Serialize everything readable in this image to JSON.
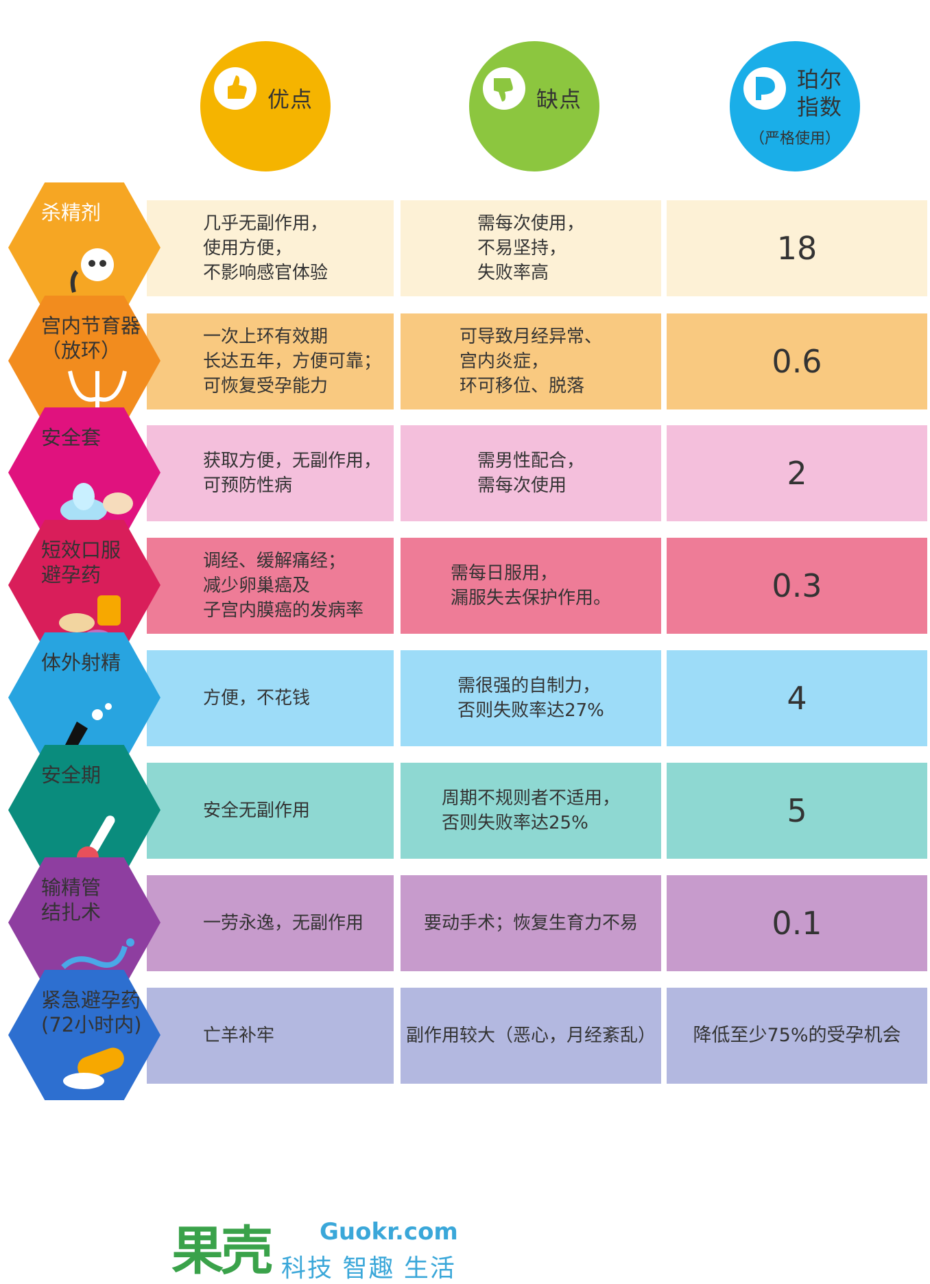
{
  "header": {
    "pros": {
      "label": "优点",
      "color": "#f5b400"
    },
    "cons": {
      "label": "缺点",
      "color": "#8cc63f"
    },
    "pearl": {
      "label": "珀尔指数",
      "sub": "（严格使用）",
      "color": "#1aaee8"
    }
  },
  "rows": [
    {
      "name": "杀精剂",
      "pros": "几乎无副作用，\n使用方便，\n不影响感官体验",
      "cons": "需每次使用，\n不易坚持，\n失败率高",
      "index": "18",
      "hex_color": "#f6a623",
      "cell_color": "#fdf1d6"
    },
    {
      "name": "宫内节育器\n（放环）",
      "pros": "一次上环有效期\n长达五年，方便可靠；\n可恢复受孕能力",
      "cons": "可导致月经异常、\n宫内炎症，\n环可移位、脱落",
      "index": "0.6",
      "hex_color": "#f28c1e",
      "cell_color": "#f9c980"
    },
    {
      "name": "安全套",
      "pros": "获取方便，无副作用，\n可预防性病",
      "cons": "需男性配合，\n需每次使用",
      "index": "2",
      "hex_color": "#e0127e",
      "cell_color": "#f4bfdc"
    },
    {
      "name": "短效口服\n避孕药",
      "pros": "调经、缓解痛经；\n减少卵巢癌及\n子宫内膜癌的发病率",
      "cons": "需每日服用，\n漏服失去保护作用。",
      "index": "0.3",
      "hex_color": "#d91e5a",
      "cell_color": "#ee7c97"
    },
    {
      "name": "体外射精",
      "pros": "方便，不花钱",
      "cons": "需很强的自制力，\n否则失败率达27%",
      "index": "4",
      "hex_color": "#28a4e0",
      "cell_color": "#9ddcf8"
    },
    {
      "name": "安全期",
      "pros": "安全无副作用",
      "cons": "周期不规则者不适用，\n否则失败率达25%",
      "index": "5",
      "hex_color": "#0a8c7d",
      "cell_color": "#8ed8d2"
    },
    {
      "name": "输精管\n结扎术",
      "pros": "一劳永逸，无副作用",
      "cons": "要动手术；恢复生育力不易",
      "index": "0.1",
      "hex_color": "#8e3ea0",
      "cell_color": "#c79bcc"
    },
    {
      "name": "紧急避孕药\n(72小时内)",
      "pros": "亡羊补牢",
      "cons": "副作用较大（恶心，月经紊乱）",
      "index": "降低至少75%的受孕机会",
      "hex_color": "#2d6fd0",
      "cell_color": "#b3b8e0"
    }
  ],
  "logo": {
    "cn": "果壳",
    "en": "Guokr.com",
    "tagline": "科技 智趣 生活"
  }
}
